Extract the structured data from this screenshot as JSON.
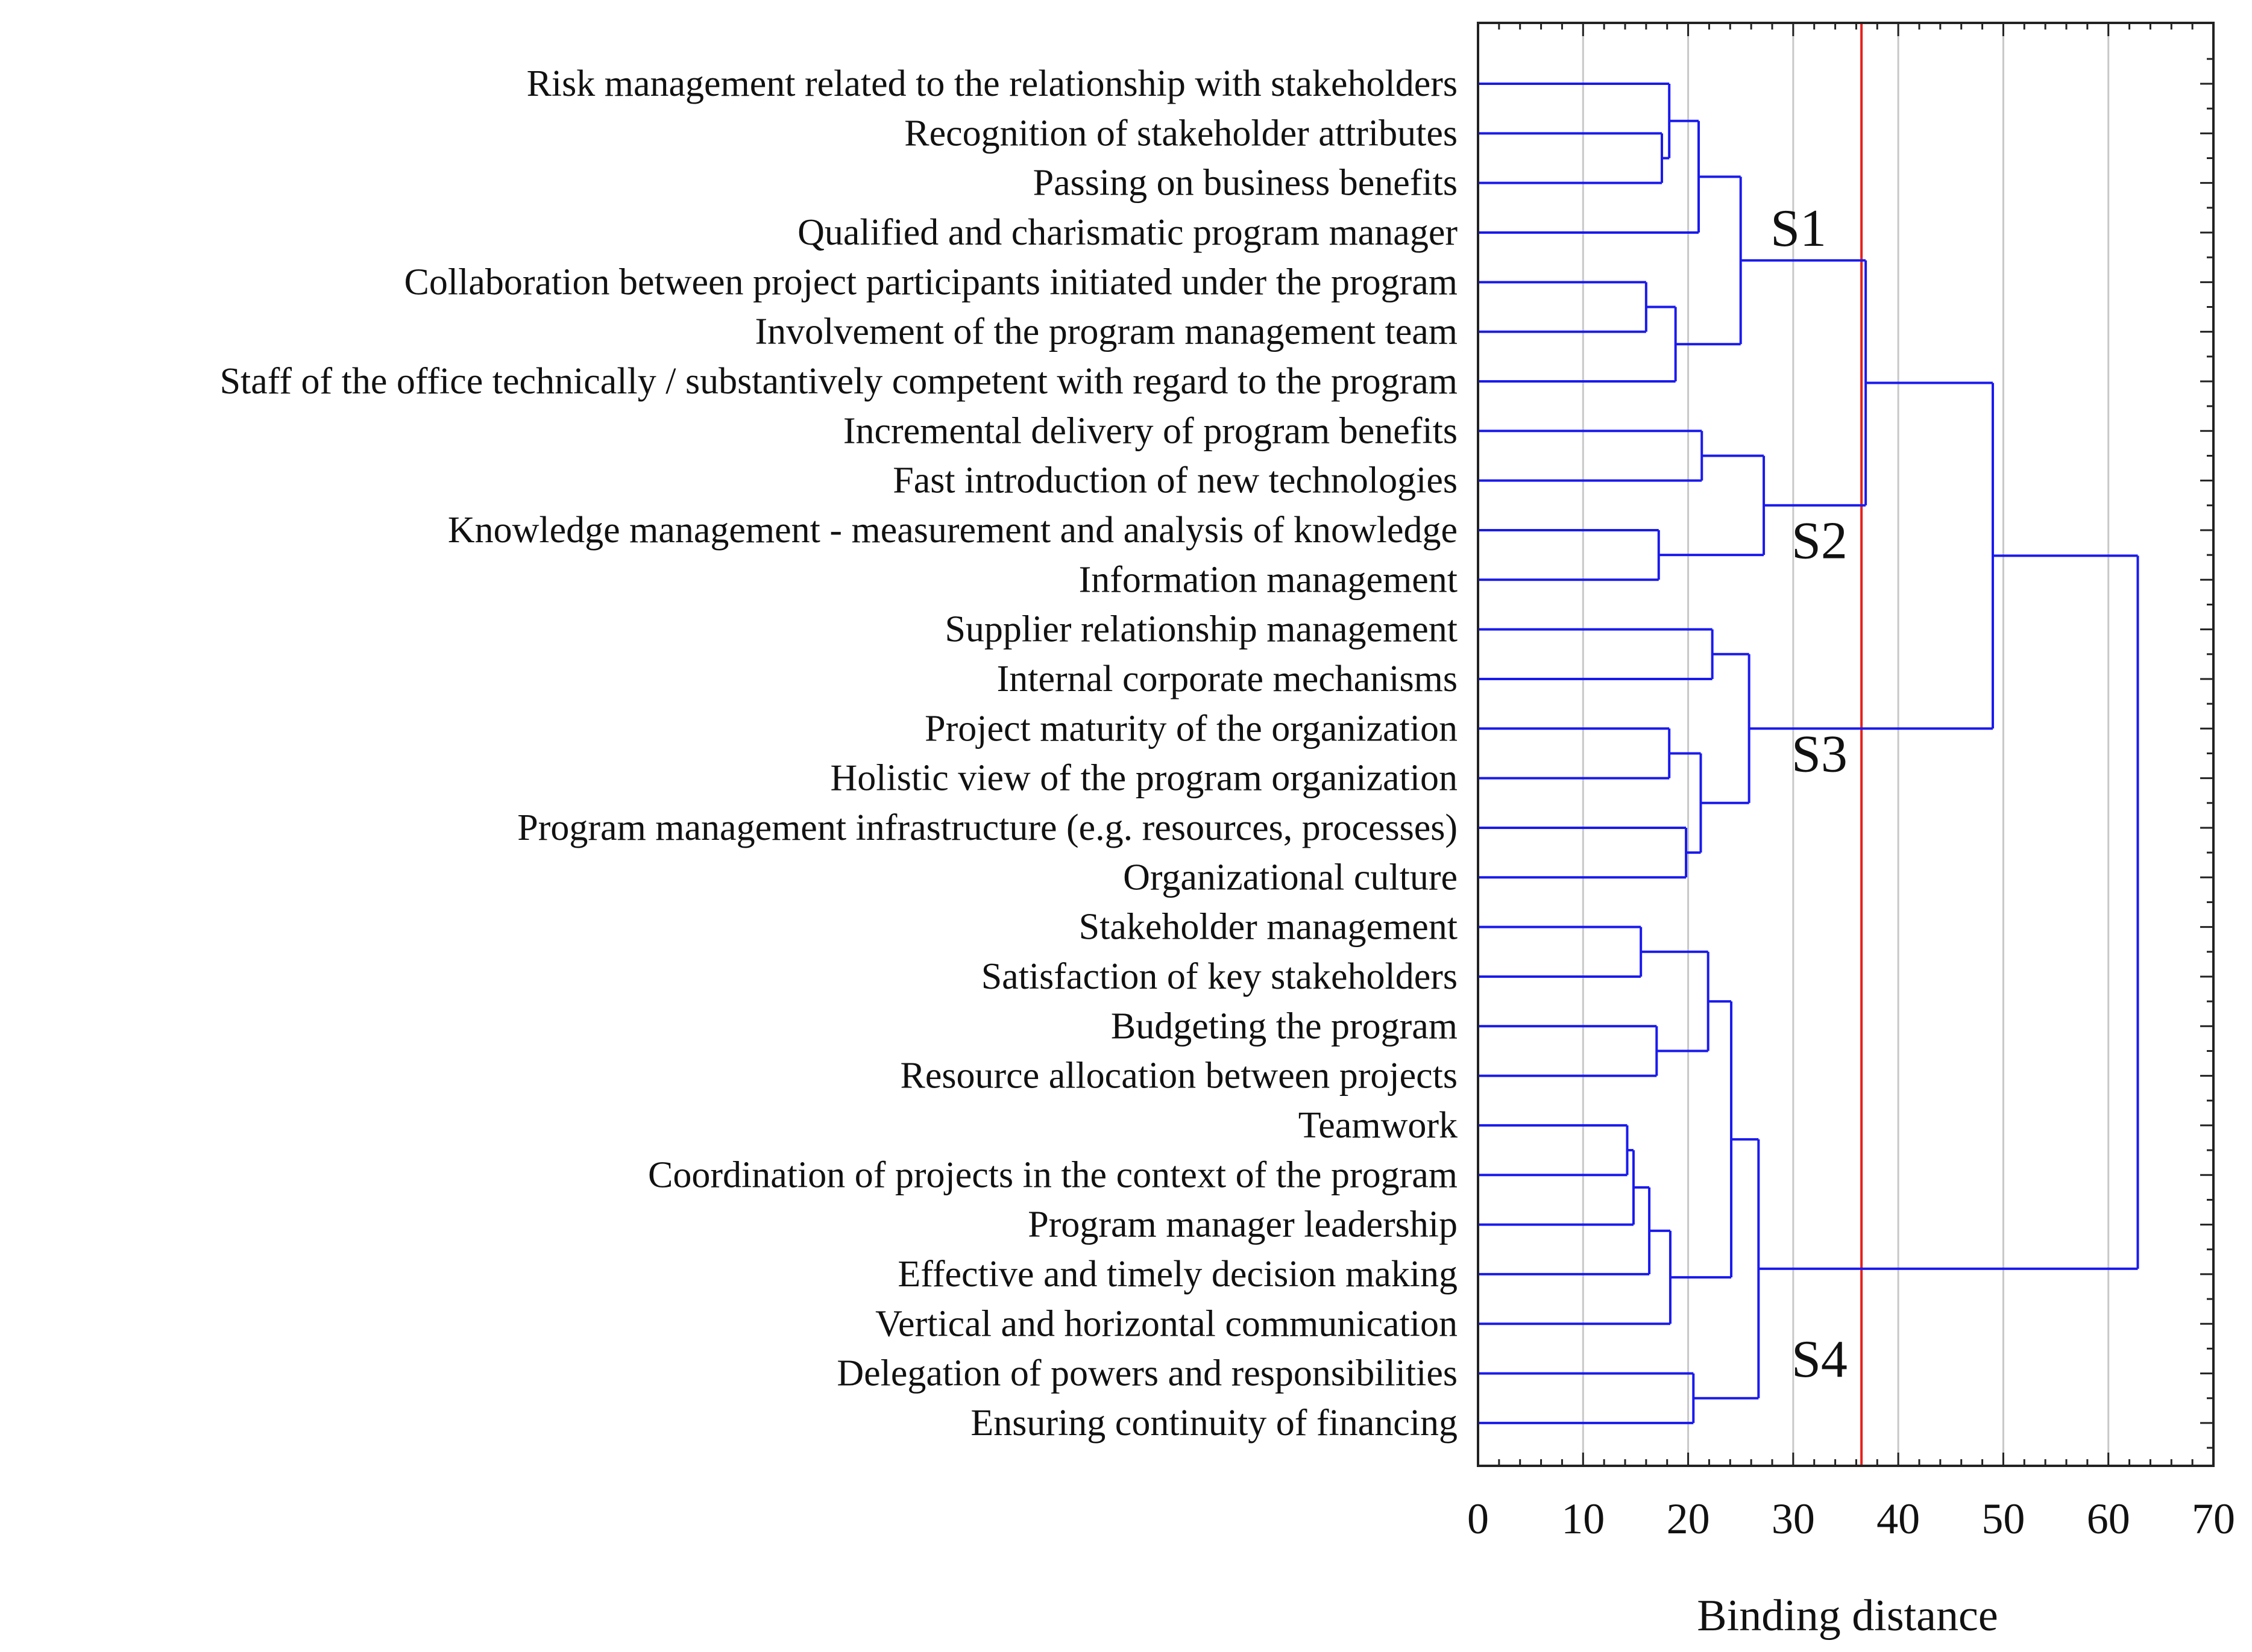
{
  "chart_data": {
    "type": "dendrogram",
    "orientation": "horizontal",
    "xlabel": "Binding distance",
    "xlim": [
      0,
      70
    ],
    "x_ticks": [
      0,
      10,
      20,
      30,
      40,
      50,
      60,
      70
    ],
    "grid": true,
    "cut_line": {
      "value": 36.5,
      "color": "#e8201c"
    },
    "line_color": "#1a1aee",
    "leaves": [
      "Risk management related to the relationship with stakeholders",
      "Recognition of stakeholder attributes",
      "Passing on business benefits",
      "Qualified and charismatic program manager",
      "Collaboration between project participants initiated under the program",
      "Involvement of the program management team",
      "Staff of the office technically / substantively competent with regard to the program",
      "Incremental delivery of program benefits",
      "Fast introduction of new technologies",
      "Knowledge management - measurement and analysis of knowledge",
      "Information management",
      "Supplier relationship management",
      "Internal corporate mechanisms",
      "Project maturity of the organization",
      "Holistic view of the program organization",
      "Program management infrastructure (e.g. resources, processes)",
      "Organizational culture",
      "Stakeholder management",
      "Satisfaction of key stakeholders",
      "Budgeting the program",
      "Resource allocation between projects",
      "Teamwork",
      "Coordination of projects in the context of the program",
      "Program manager leadership",
      "Effective and timely decision making",
      "Vertical and horizontal communication",
      "Delegation of powers and responsibilities",
      "Ensuring continuity of financing"
    ],
    "merges": [
      {
        "id": "m1",
        "children": [
          1,
          2
        ],
        "distance": 17.5
      },
      {
        "id": "m2",
        "children": [
          0,
          "m1"
        ],
        "distance": 18.2
      },
      {
        "id": "m3",
        "children": [
          "m2",
          3
        ],
        "distance": 21.0
      },
      {
        "id": "m4",
        "children": [
          4,
          5
        ],
        "distance": 16.0
      },
      {
        "id": "m5",
        "children": [
          "m4",
          6
        ],
        "distance": 18.8
      },
      {
        "id": "m6",
        "children": [
          "m3",
          "m5"
        ],
        "distance": 25.0
      },
      {
        "id": "m7",
        "children": [
          7,
          8
        ],
        "distance": 21.3
      },
      {
        "id": "m8",
        "children": [
          9,
          10
        ],
        "distance": 17.2
      },
      {
        "id": "m9",
        "children": [
          "m7",
          "m8"
        ],
        "distance": 27.2
      },
      {
        "id": "m10",
        "children": [
          "m6",
          "m9"
        ],
        "distance": 36.9
      },
      {
        "id": "m11",
        "children": [
          11,
          12
        ],
        "distance": 22.3
      },
      {
        "id": "m12",
        "children": [
          13,
          14
        ],
        "distance": 18.2
      },
      {
        "id": "m13",
        "children": [
          15,
          16
        ],
        "distance": 19.8
      },
      {
        "id": "m14",
        "children": [
          "m12",
          "m13"
        ],
        "distance": 21.2
      },
      {
        "id": "m15",
        "children": [
          "m11",
          "m14"
        ],
        "distance": 25.8
      },
      {
        "id": "m16",
        "children": [
          "m10",
          "m15"
        ],
        "distance": 49.0
      },
      {
        "id": "m17",
        "children": [
          17,
          18
        ],
        "distance": 15.5
      },
      {
        "id": "m18",
        "children": [
          19,
          20
        ],
        "distance": 17.0
      },
      {
        "id": "m19",
        "children": [
          "m17",
          "m18"
        ],
        "distance": 21.9
      },
      {
        "id": "m20",
        "children": [
          21,
          22
        ],
        "distance": 14.2
      },
      {
        "id": "m21",
        "children": [
          "m20",
          23
        ],
        "distance": 14.8
      },
      {
        "id": "m22",
        "children": [
          "m21",
          24
        ],
        "distance": 16.3
      },
      {
        "id": "m23",
        "children": [
          "m22",
          25
        ],
        "distance": 18.3
      },
      {
        "id": "m24",
        "children": [
          "m19",
          "m23"
        ],
        "distance": 24.1
      },
      {
        "id": "m25",
        "children": [
          26,
          27
        ],
        "distance": 20.5
      },
      {
        "id": "m26",
        "children": [
          "m24",
          "m25"
        ],
        "distance": 26.7
      },
      {
        "id": "m27",
        "children": [
          "m16",
          "m26"
        ],
        "distance": 62.8
      }
    ],
    "cluster_labels": [
      {
        "text": "S1",
        "distance": 30.5,
        "leaf_position": 2.9
      },
      {
        "text": "S2",
        "distance": 32.5,
        "leaf_position": 9.2
      },
      {
        "text": "S3",
        "distance": 32.5,
        "leaf_position": 13.5
      },
      {
        "text": "S4",
        "distance": 32.5,
        "leaf_position": 25.7
      }
    ]
  }
}
